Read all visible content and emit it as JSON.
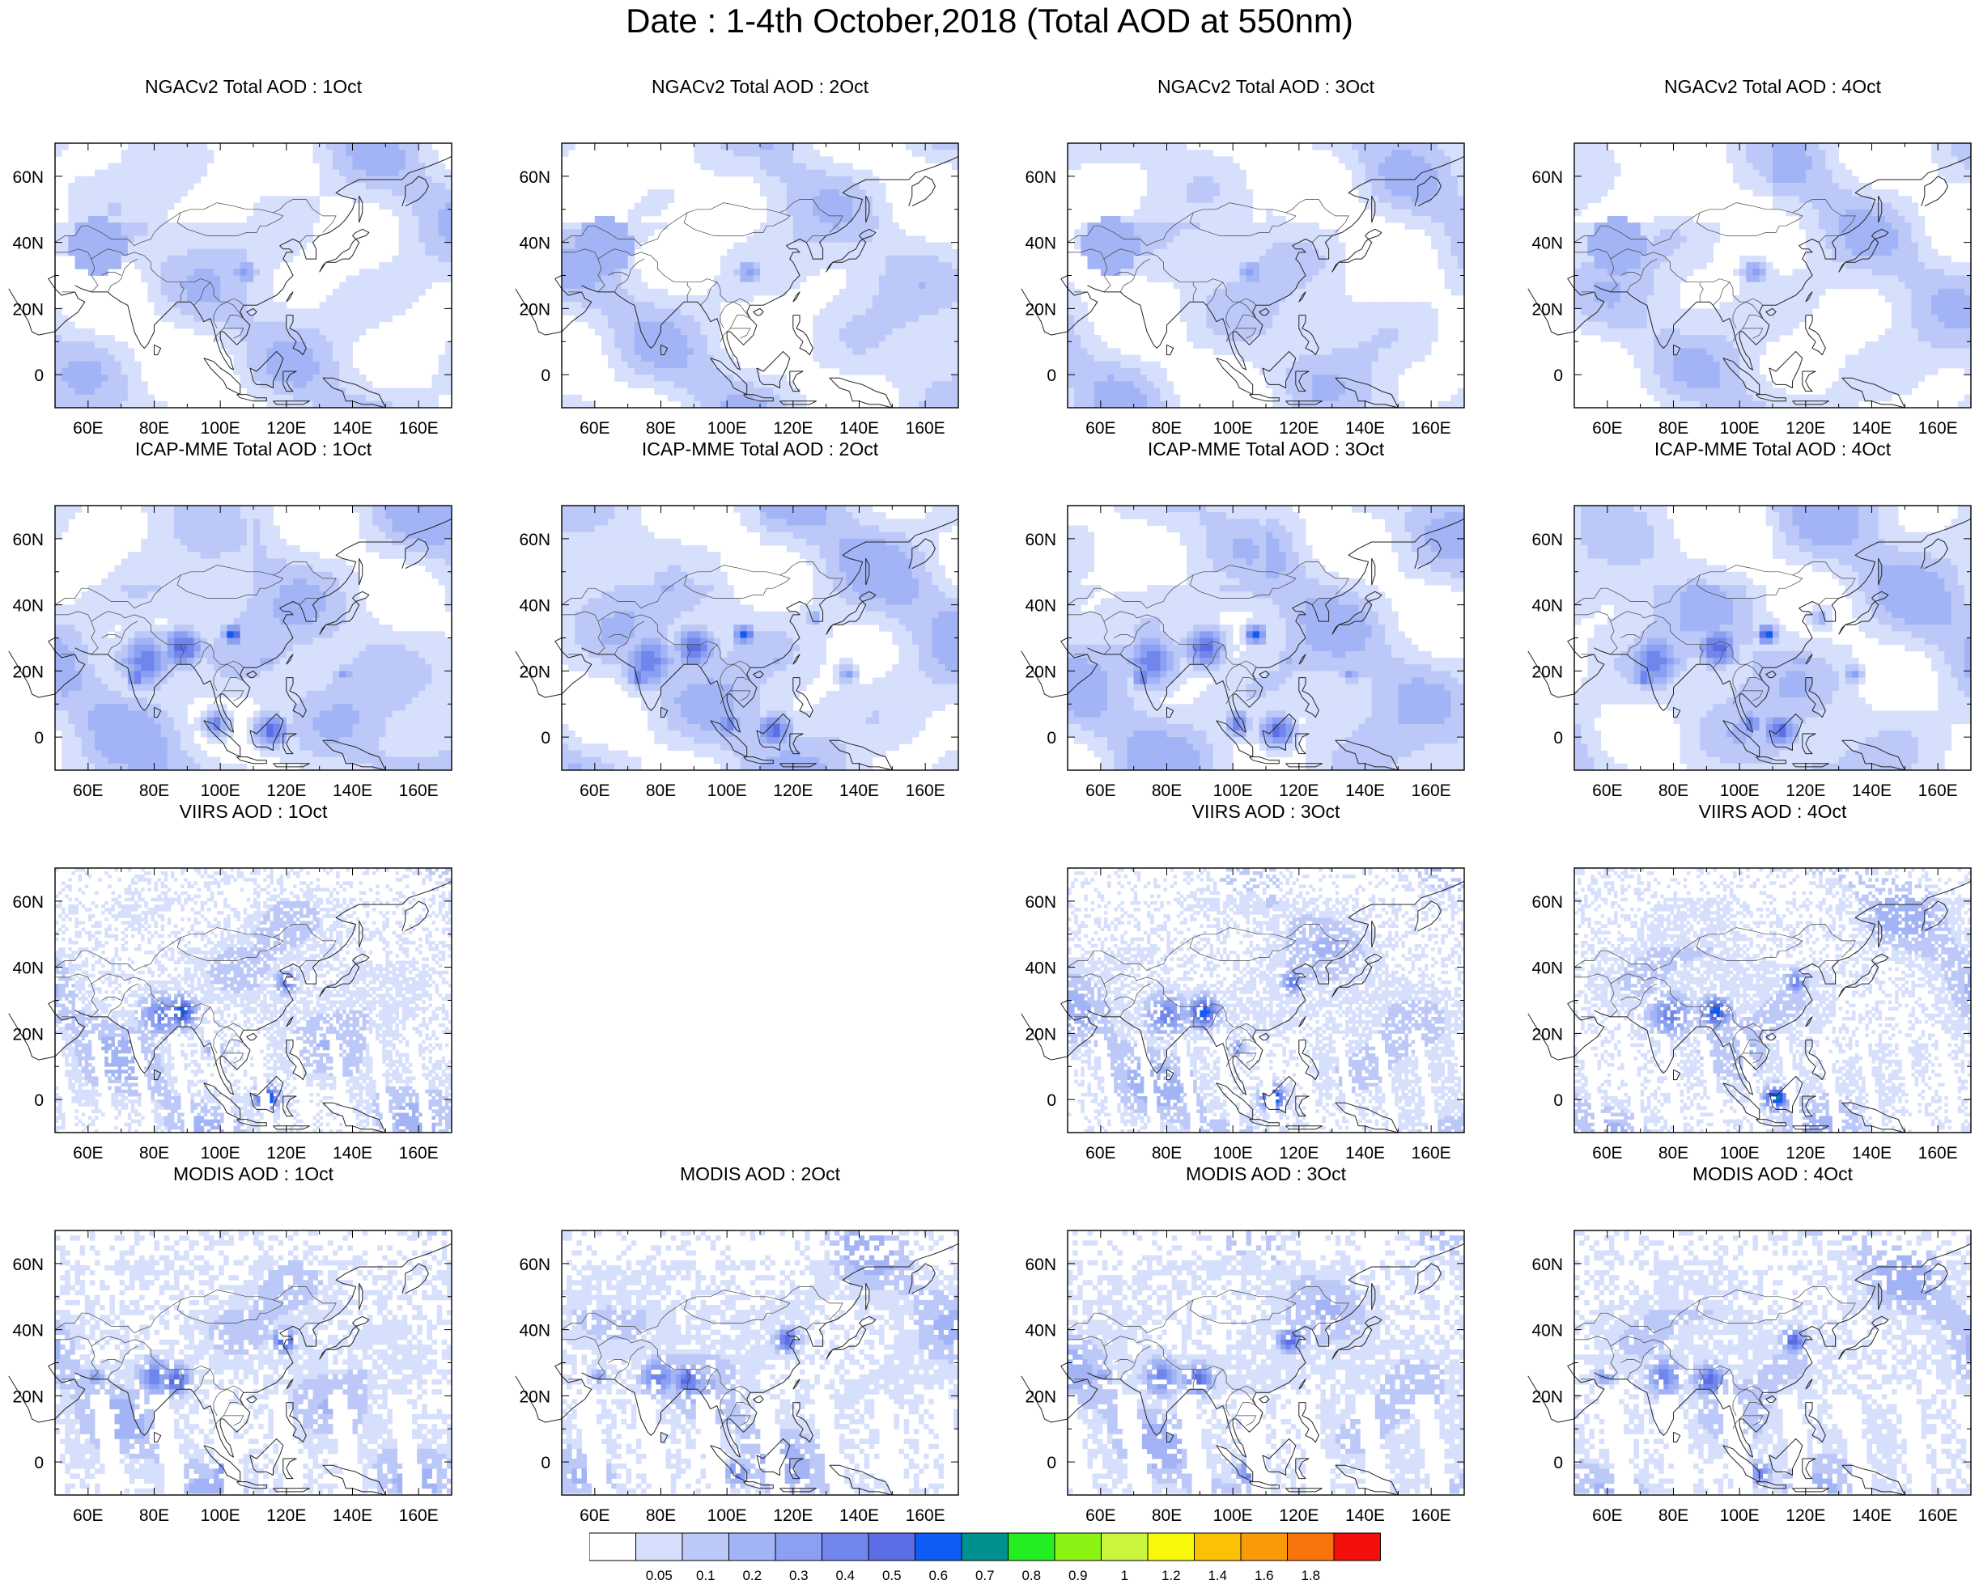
{
  "figure_title": "Date : 1-4th October,2018 (Total AOD at 550nm)",
  "lat_tick_labels": [
    "60N",
    "40N",
    "20N",
    "0"
  ],
  "lon_tick_labels": [
    "60E",
    "80E",
    "100E",
    "120E",
    "140E",
    "160E"
  ],
  "extent": {
    "lon": [
      50,
      170
    ],
    "lat": [
      -10,
      70
    ]
  },
  "panels": [
    {
      "title": "NGACv2 Total AOD : 1Oct",
      "dataset": "NGACv2",
      "day": 1
    },
    {
      "title": "NGACv2 Total AOD : 2Oct",
      "dataset": "NGACv2",
      "day": 2
    },
    {
      "title": "NGACv2 Total AOD : 3Oct",
      "dataset": "NGACv2",
      "day": 3
    },
    {
      "title": "NGACv2 Total AOD : 4Oct",
      "dataset": "NGACv2",
      "day": 4
    },
    {
      "title": "ICAP-MME Total AOD : 1Oct",
      "dataset": "ICAP-MME",
      "day": 1
    },
    {
      "title": "ICAP-MME Total AOD : 2Oct",
      "dataset": "ICAP-MME",
      "day": 2
    },
    {
      "title": "ICAP-MME Total AOD : 3Oct",
      "dataset": "ICAP-MME",
      "day": 3
    },
    {
      "title": "ICAP-MME Total AOD : 4Oct",
      "dataset": "ICAP-MME",
      "day": 4
    },
    {
      "title": "VIIRS AOD : 1Oct",
      "dataset": "VIIRS",
      "day": 1
    },
    null,
    {
      "title": "VIIRS AOD : 3Oct",
      "dataset": "VIIRS",
      "day": 3
    },
    {
      "title": "VIIRS AOD : 4Oct",
      "dataset": "VIIRS",
      "day": 4
    },
    {
      "title": "MODIS AOD : 1Oct",
      "dataset": "MODIS",
      "day": 1
    },
    {
      "title": "MODIS AOD : 2Oct",
      "dataset": "MODIS",
      "day": 2
    },
    {
      "title": "MODIS AOD : 3Oct",
      "dataset": "MODIS",
      "day": 3
    },
    {
      "title": "MODIS AOD : 4Oct",
      "dataset": "MODIS",
      "day": 4
    }
  ],
  "colorbar": {
    "colors": [
      "#ffffff",
      "#d6dffb",
      "#bcc9f8",
      "#a2b4f5",
      "#8ba0f2",
      "#7086ec",
      "#5b6ee5",
      "#0f5cf5",
      "#00918f",
      "#22ee22",
      "#8cf214",
      "#c9f53f",
      "#f8f80a",
      "#fbc105",
      "#f99a08",
      "#f7740d",
      "#f40f0b"
    ],
    "labels": [
      "0.05",
      "0.1",
      "0.2",
      "0.3",
      "0.4",
      "0.5",
      "0.6",
      "0.7",
      "0.8",
      "0.9",
      "1",
      "1.2",
      "1.4",
      "1.6",
      "1.8"
    ]
  }
}
